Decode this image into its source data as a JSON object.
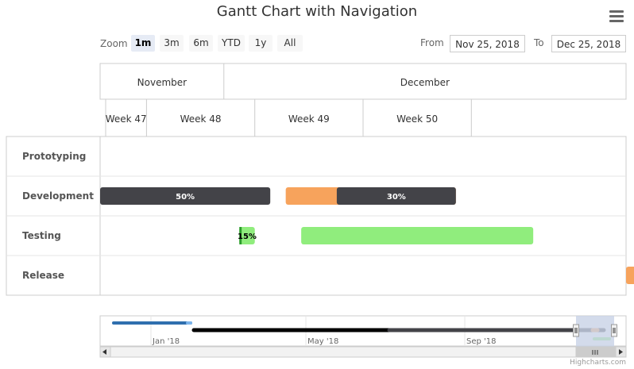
{
  "title": "Gantt Chart with Navigation",
  "menu_icon": "hamburger-menu-icon",
  "range_selector": {
    "zoom_label": "Zoom",
    "buttons": [
      "1m",
      "3m",
      "6m",
      "YTD",
      "1y",
      "All"
    ],
    "selected": "1m",
    "from_label": "From",
    "from_value": "Nov 25, 2018",
    "to_label": "To",
    "to_value": "Dec 25, 2018"
  },
  "credits": "Highcharts.com",
  "colors": {
    "dark": "#434348",
    "orange": "#f7a35c",
    "green": "#90ed7d",
    "blue": "#2f6fae",
    "grid": "#e6e6e6",
    "navigator_mask": "#c8d2e6"
  },
  "chart_data": {
    "type": "gantt",
    "x_range": [
      "2018-11-23",
      "2018-12-27"
    ],
    "axis_months": [
      "November",
      "December"
    ],
    "axis_weeks": [
      "Week 47",
      "Week 48",
      "Week 49",
      "Week 50"
    ],
    "categories": [
      "Prototyping",
      "Development",
      "Testing",
      "Release"
    ],
    "tasks": [
      {
        "category": "Development",
        "start": "2018-11-23",
        "end": "2018-12-04",
        "completed": 0.5,
        "label": "50%"
      },
      {
        "category": "Development",
        "start": "2018-12-05",
        "end": "2018-12-16",
        "completed": 0.3,
        "label": "30%"
      },
      {
        "category": "Testing",
        "start": "2018-12-02",
        "end": "2018-12-03",
        "completed": 0.15,
        "label": "15%"
      },
      {
        "category": "Testing",
        "start": "2018-12-06",
        "end": "2018-12-21",
        "completed": 0
      },
      {
        "category": "Release",
        "start": "2018-12-27",
        "end": "2018-12-28",
        "completed": 0
      }
    ],
    "navigator": {
      "x_labels": [
        "Jan '18",
        "May '18",
        "Sep '18"
      ]
    }
  }
}
